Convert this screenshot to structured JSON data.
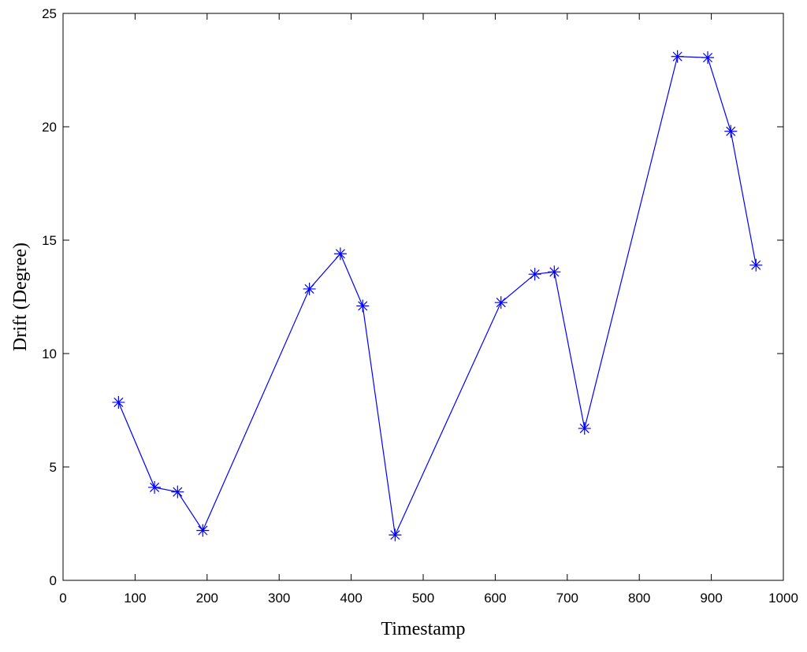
{
  "chart_data": {
    "type": "line",
    "xlabel": "Timestamp",
    "ylabel": "Drift (Degree)",
    "x": [
      77,
      127,
      159,
      194,
      342,
      385,
      416,
      461,
      608,
      655,
      682,
      724,
      853,
      895,
      927,
      962
    ],
    "series": [
      {
        "color": "#0000ff",
        "marker": "star",
        "values": [
          7.85,
          4.1,
          3.9,
          2.2,
          12.85,
          14.4,
          12.1,
          2.0,
          12.25,
          13.5,
          13.6,
          6.7,
          23.1,
          23.05,
          19.8,
          13.9
        ]
      }
    ],
    "xlim": [
      0,
      1000
    ],
    "xticks": [
      0,
      100,
      200,
      300,
      400,
      500,
      600,
      700,
      800,
      900,
      1000
    ],
    "ylim": [
      0,
      25
    ],
    "yticks": [
      0,
      5,
      10,
      15,
      20,
      25
    ]
  }
}
